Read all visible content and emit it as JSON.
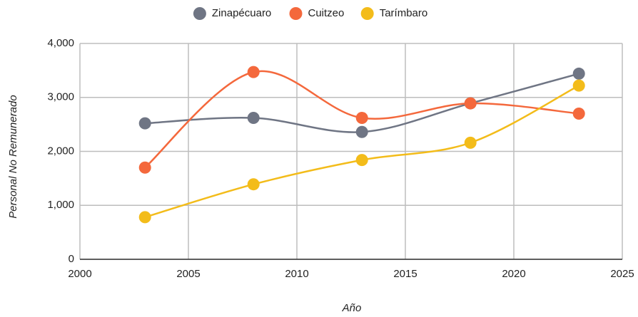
{
  "chart_data": {
    "type": "line",
    "smooth": true,
    "x_label": "Año",
    "y_label": "Personal No Remunerado",
    "x": [
      2003,
      2008,
      2013,
      2018,
      2023
    ],
    "series": [
      {
        "name": "Zinapécuaro",
        "color": "#6f7584",
        "values": [
          2520,
          2620,
          2360,
          2890,
          3440
        ]
      },
      {
        "name": "Cuitzeo",
        "color": "#f4683c",
        "values": [
          1700,
          3470,
          2620,
          2890,
          2700
        ]
      },
      {
        "name": "Tarímbaro",
        "color": "#f3bc1a",
        "values": [
          780,
          1390,
          1840,
          2160,
          3220
        ]
      }
    ],
    "xlim": [
      2000,
      2025
    ],
    "xticks": [
      2000,
      2005,
      2010,
      2015,
      2020,
      2025
    ],
    "ylim": [
      0,
      4000
    ],
    "yticks": [
      0,
      {
        "value": 1000,
        "label": "1,000"
      },
      {
        "value": 2000,
        "label": "2,000"
      },
      {
        "value": 3000,
        "label": "3,000"
      },
      {
        "value": 4000,
        "label": "4,000"
      }
    ],
    "grid": true,
    "legend": "top"
  }
}
